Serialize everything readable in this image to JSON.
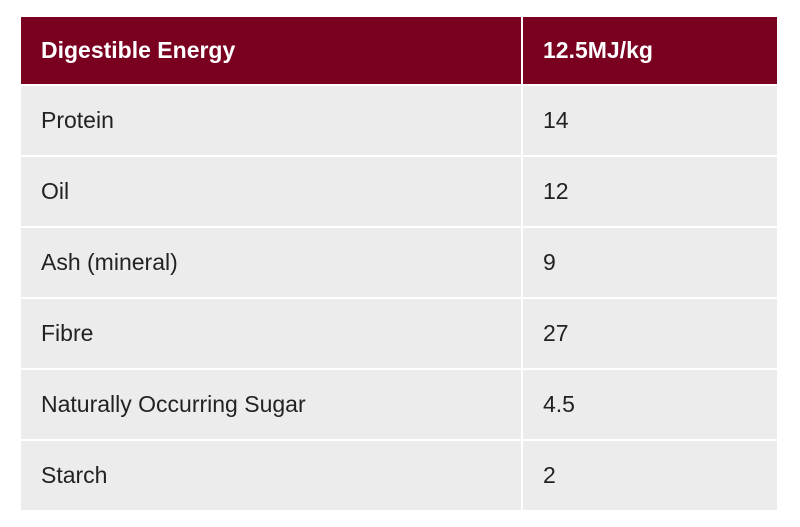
{
  "table": {
    "header": {
      "label": "Digestible Energy",
      "value": "12.5MJ/kg"
    },
    "rows": [
      {
        "label": "Protein",
        "value": "14"
      },
      {
        "label": "Oil",
        "value": "12"
      },
      {
        "label": "Ash (mineral)",
        "value": "9"
      },
      {
        "label": "Fibre",
        "value": "27"
      },
      {
        "label": "Naturally Occurring Sugar",
        "value": "4.5"
      },
      {
        "label": "Starch",
        "value": "2"
      }
    ]
  },
  "colors": {
    "header_bg": "#7a0020",
    "header_text": "#ffffff",
    "row_bg": "#ececec",
    "row_text": "#222222"
  }
}
